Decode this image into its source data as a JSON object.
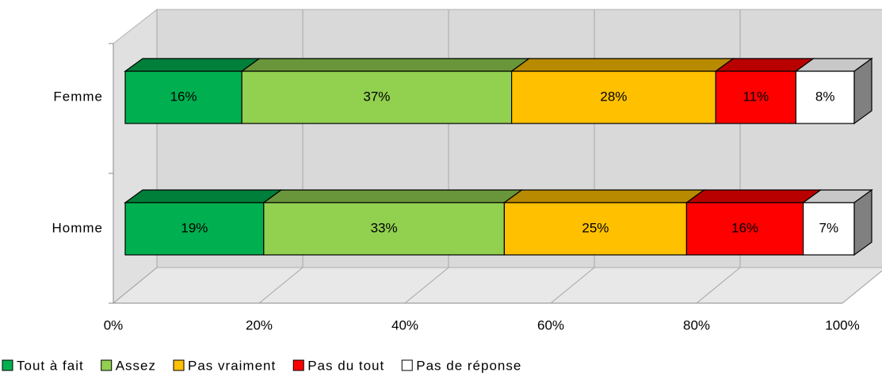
{
  "chart_data": {
    "type": "bar3d_stacked_horizontal",
    "categories": [
      "Femme",
      "Homme"
    ],
    "series": [
      {
        "name": "Tout à fait",
        "color": "#00b050",
        "values": [
          16,
          19
        ],
        "value_labels": [
          "16%",
          "19%"
        ]
      },
      {
        "name": "Assez",
        "color": "#92d050",
        "values": [
          37,
          33
        ],
        "value_labels": [
          "37%",
          "33%"
        ]
      },
      {
        "name": "Pas vraiment",
        "color": "#ffc000",
        "values": [
          28,
          25
        ],
        "value_labels": [
          "28%",
          "25%"
        ]
      },
      {
        "name": "Pas du tout",
        "color": "#ff0000",
        "values": [
          11,
          16
        ],
        "value_labels": [
          "11%",
          "16%"
        ]
      },
      {
        "name": "Pas de réponse",
        "color": "#ffffff",
        "values": [
          8,
          7
        ],
        "value_labels": [
          "8%",
          "7%"
        ]
      }
    ],
    "xlim": [
      0,
      100
    ],
    "xticks": [
      {
        "value": 0,
        "label": "0%"
      },
      {
        "value": 20,
        "label": "20%"
      },
      {
        "value": 40,
        "label": "40%"
      },
      {
        "value": 60,
        "label": "60%"
      },
      {
        "value": 80,
        "label": "80%"
      },
      {
        "value": 100,
        "label": "100%"
      }
    ],
    "grid": true,
    "legend": "bottom"
  }
}
